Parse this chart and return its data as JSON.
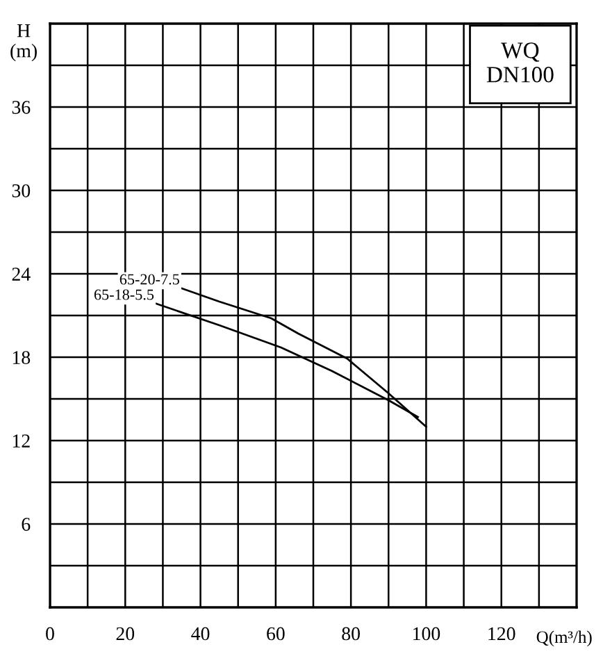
{
  "chart_data": {
    "type": "line",
    "xlabel": "Q(m³/h)",
    "ylabel": "H\n(m)",
    "annotations": [
      "WQ\nDN100"
    ],
    "series": [
      {
        "name": "65-20-7.5",
        "color": "#000000",
        "x": [
          34.5,
          45,
          58.8,
          66,
          79,
          90,
          100
        ],
        "values": [
          23.0,
          22.0,
          20.8,
          19.7,
          17.9,
          15.4,
          13.0
        ]
      },
      {
        "name": "65-18-5.5",
        "color": "#000000",
        "x": [
          27.7,
          45,
          61.4,
          75,
          90,
          97.8
        ],
        "values": [
          21.9,
          20.3,
          18.7,
          17.0,
          14.9,
          13.7
        ]
      }
    ],
    "xlim": [
      0,
      140
    ],
    "ylim": [
      0,
      42
    ],
    "xticks": [
      0,
      {
        "value": 10,
        "label": null
      },
      20,
      {
        "value": 30,
        "label": null
      },
      40,
      {
        "value": 50,
        "label": null
      },
      60,
      {
        "value": 70,
        "label": null
      },
      80,
      {
        "value": 90,
        "label": null
      },
      100,
      {
        "value": 110,
        "label": null
      },
      120,
      {
        "value": 130,
        "label": null
      }
    ],
    "yticks": [
      {
        "value": 3,
        "label": null
      },
      6,
      {
        "value": 9,
        "label": null
      },
      12,
      {
        "value": 15,
        "label": null
      },
      18,
      {
        "value": 21,
        "label": null
      },
      24,
      {
        "value": 27,
        "label": null
      },
      30,
      {
        "value": 33,
        "label": null
      },
      36,
      {
        "value": 39,
        "label": null
      }
    ],
    "grid": true,
    "legend": false,
    "marker": "none",
    "line_style": "solid"
  }
}
